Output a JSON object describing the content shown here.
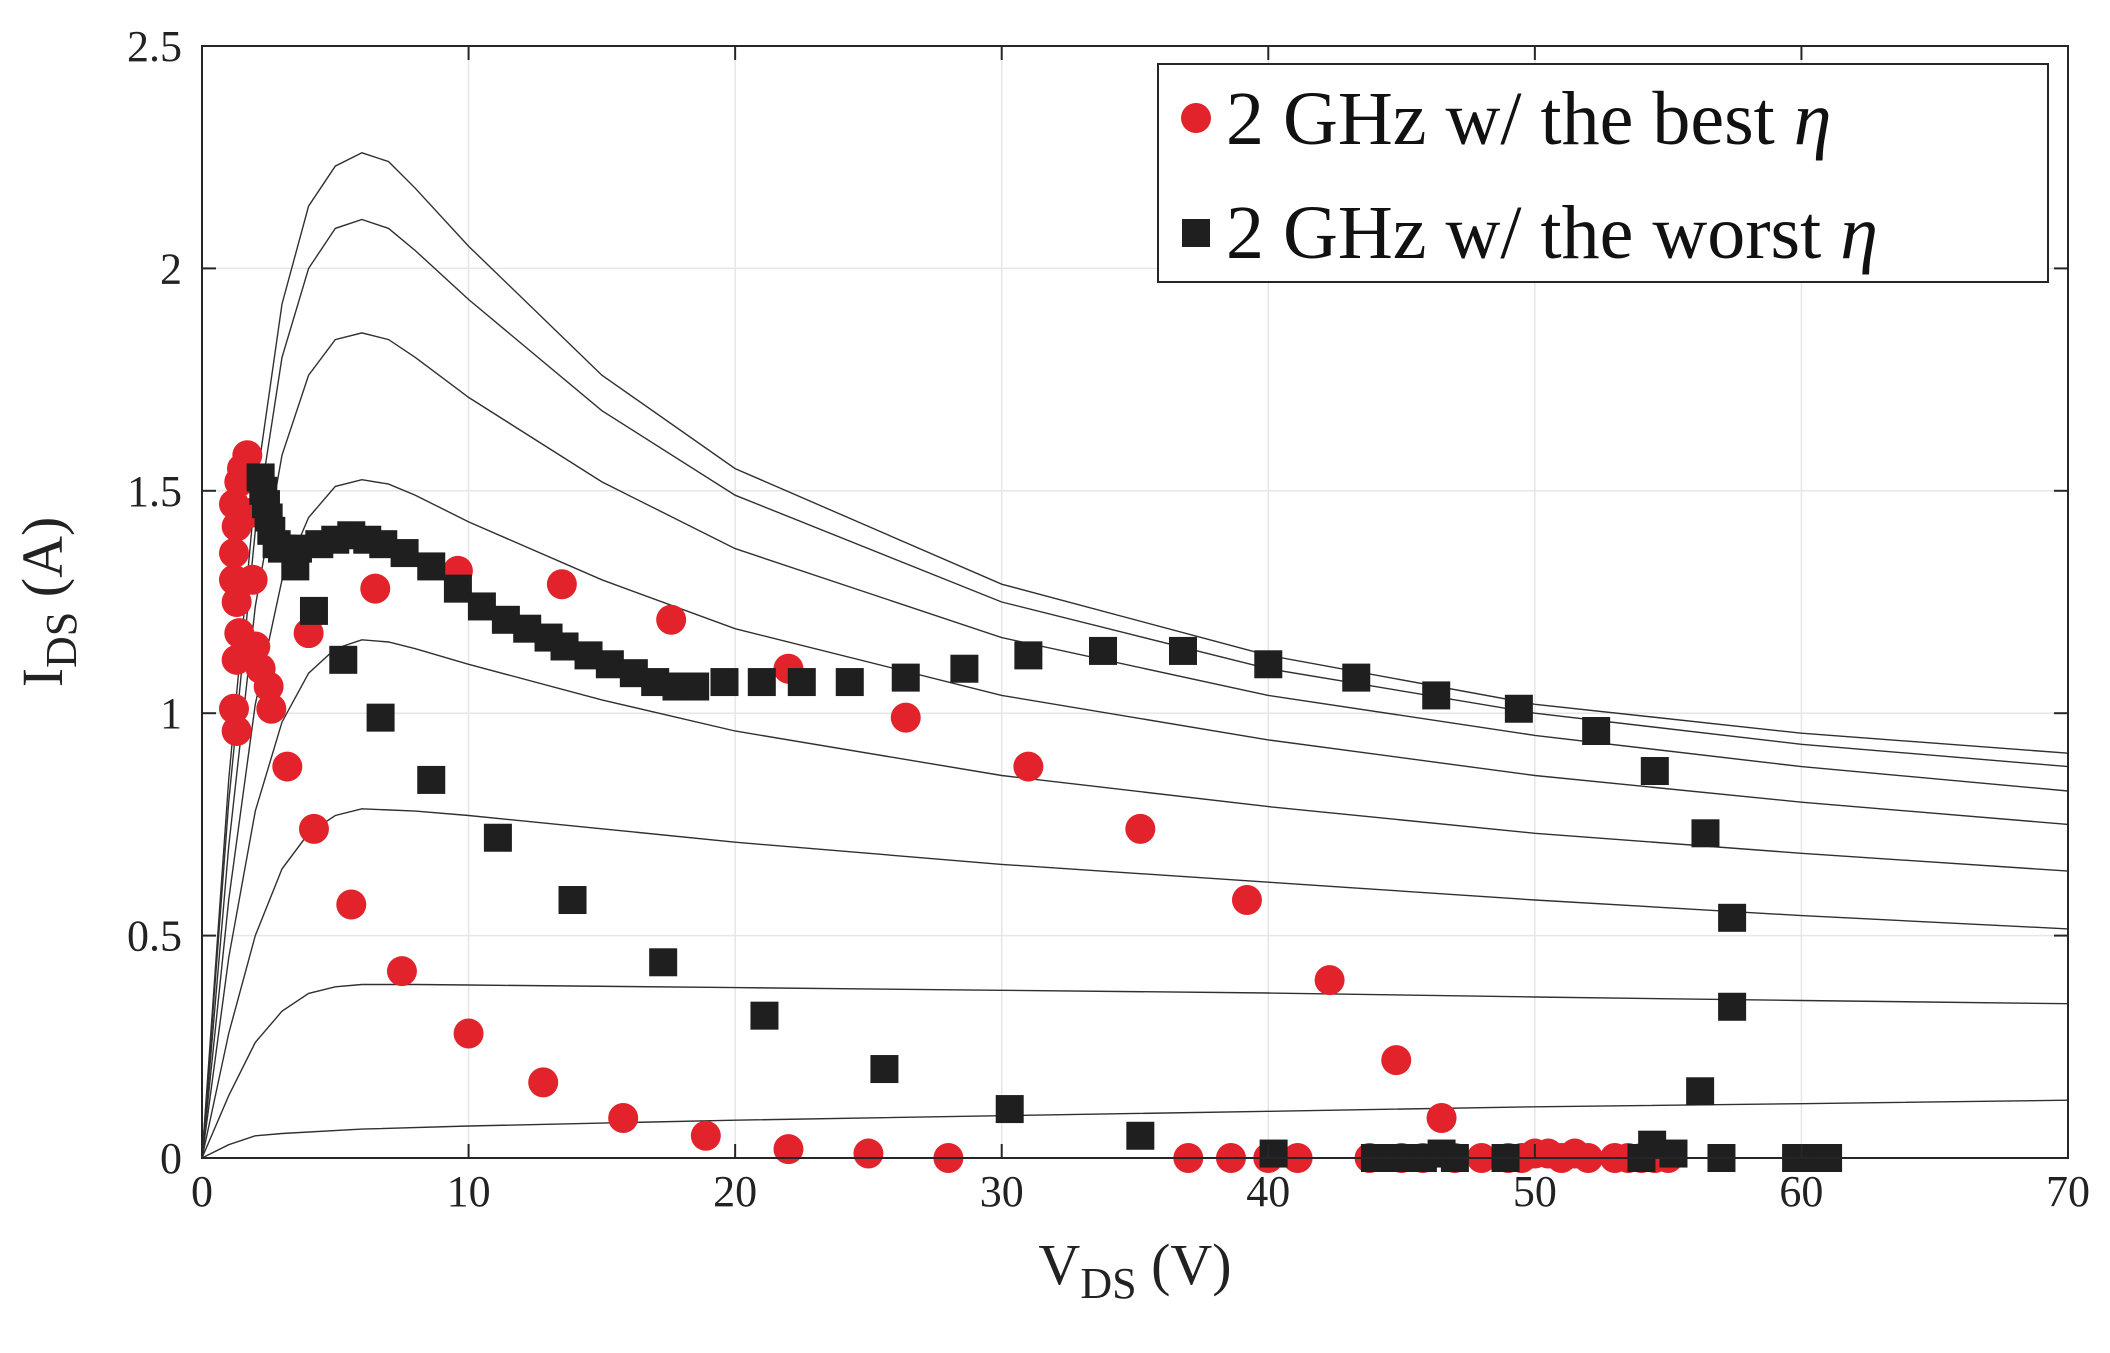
{
  "chart_data": {
    "type": "scatter",
    "title": "",
    "xlabel": {
      "main": "V",
      "sub": "DS",
      "unit": "(V)"
    },
    "ylabel": {
      "main": "I",
      "sub": "DS",
      "unit": "(A)"
    },
    "xlim": [
      0,
      70
    ],
    "ylim": [
      0,
      2.5
    ],
    "grid": true,
    "legend_position": "top-right",
    "x_ticks": [
      "0",
      "10",
      "20",
      "30",
      "40",
      "50",
      "60",
      "70"
    ],
    "y_ticks": [
      "0",
      "0.5",
      "1",
      "1.5",
      "2",
      "2.5"
    ],
    "series": [
      {
        "name": "2 GHz w/ the best η",
        "label_text": "2 GHz w/ the best ",
        "label_symbol": "η",
        "marker": "circle",
        "color": "#e3232c",
        "points": [
          [
            1.3,
            0.96
          ],
          [
            1.2,
            1.01
          ],
          [
            1.3,
            1.12
          ],
          [
            1.4,
            1.18
          ],
          [
            1.3,
            1.25
          ],
          [
            1.2,
            1.3
          ],
          [
            1.2,
            1.36
          ],
          [
            1.3,
            1.42
          ],
          [
            1.2,
            1.47
          ],
          [
            1.4,
            1.52
          ],
          [
            1.5,
            1.55
          ],
          [
            1.7,
            1.58
          ],
          [
            1.8,
            1.45
          ],
          [
            1.9,
            1.3
          ],
          [
            2.0,
            1.15
          ],
          [
            2.2,
            1.1
          ],
          [
            2.5,
            1.06
          ],
          [
            2.6,
            1.01
          ],
          [
            3.2,
            0.88
          ],
          [
            4.0,
            1.18
          ],
          [
            4.2,
            0.74
          ],
          [
            5.6,
            0.57
          ],
          [
            6.5,
            1.28
          ],
          [
            7.5,
            0.42
          ],
          [
            9.6,
            1.32
          ],
          [
            10.0,
            0.28
          ],
          [
            12.8,
            0.17
          ],
          [
            13.5,
            1.29
          ],
          [
            15.8,
            0.09
          ],
          [
            17.6,
            1.21
          ],
          [
            18.9,
            0.05
          ],
          [
            22.0,
            1.1
          ],
          [
            22.0,
            0.02
          ],
          [
            25.0,
            0.01
          ],
          [
            26.4,
            0.99
          ],
          [
            28.0,
            0.0
          ],
          [
            31.0,
            0.88
          ],
          [
            35.2,
            0.74
          ],
          [
            37.0,
            0.0
          ],
          [
            38.6,
            0.0
          ],
          [
            39.2,
            0.58
          ],
          [
            40.0,
            0.0
          ],
          [
            41.1,
            0.0
          ],
          [
            42.3,
            0.4
          ],
          [
            43.8,
            0.0
          ],
          [
            44.8,
            0.22
          ],
          [
            45.0,
            0.0
          ],
          [
            45.8,
            0.0
          ],
          [
            46.5,
            0.09
          ],
          [
            47.0,
            0.0
          ],
          [
            48.0,
            0.0
          ],
          [
            49.0,
            0.0
          ],
          [
            49.5,
            0.0
          ],
          [
            50.0,
            0.01
          ],
          [
            50.5,
            0.01
          ],
          [
            51.0,
            0.0
          ],
          [
            51.5,
            0.01
          ],
          [
            52.0,
            0.0
          ],
          [
            53.0,
            0.0
          ],
          [
            53.5,
            0.0
          ],
          [
            54.0,
            0.0
          ],
          [
            54.5,
            0.0
          ],
          [
            55.0,
            0.0
          ]
        ]
      },
      {
        "name": "2 GHz w/ the worst η",
        "label_text": "2 GHz w/ the worst ",
        "label_symbol": "η",
        "marker": "square",
        "color": "#1f1f1f",
        "points": [
          [
            2.2,
            1.53
          ],
          [
            2.3,
            1.5
          ],
          [
            2.4,
            1.47
          ],
          [
            2.5,
            1.44
          ],
          [
            2.6,
            1.41
          ],
          [
            2.8,
            1.38
          ],
          [
            3.0,
            1.37
          ],
          [
            3.5,
            1.33
          ],
          [
            3.6,
            1.37
          ],
          [
            4.2,
            1.23
          ],
          [
            4.4,
            1.38
          ],
          [
            5.0,
            1.39
          ],
          [
            5.3,
            1.12
          ],
          [
            5.6,
            1.4
          ],
          [
            6.2,
            1.39
          ],
          [
            6.8,
            1.38
          ],
          [
            6.7,
            0.99
          ],
          [
            7.6,
            1.36
          ],
          [
            8.6,
            1.33
          ],
          [
            8.6,
            0.85
          ],
          [
            9.6,
            1.28
          ],
          [
            10.5,
            1.24
          ],
          [
            11.1,
            0.72
          ],
          [
            11.4,
            1.21
          ],
          [
            12.2,
            1.19
          ],
          [
            13.0,
            1.17
          ],
          [
            13.6,
            1.15
          ],
          [
            13.9,
            0.58
          ],
          [
            14.5,
            1.13
          ],
          [
            15.3,
            1.11
          ],
          [
            16.2,
            1.09
          ],
          [
            17.0,
            1.07
          ],
          [
            17.3,
            0.44
          ],
          [
            17.8,
            1.06
          ],
          [
            18.5,
            1.06
          ],
          [
            19.6,
            1.07
          ],
          [
            21.0,
            1.07
          ],
          [
            21.1,
            0.32
          ],
          [
            22.5,
            1.07
          ],
          [
            24.3,
            1.07
          ],
          [
            25.6,
            0.2
          ],
          [
            26.4,
            1.08
          ],
          [
            28.6,
            1.1
          ],
          [
            30.3,
            0.11
          ],
          [
            31.0,
            1.13
          ],
          [
            33.8,
            1.14
          ],
          [
            35.2,
            0.05
          ],
          [
            36.8,
            1.14
          ],
          [
            40.0,
            1.11
          ],
          [
            40.2,
            0.01
          ],
          [
            43.3,
            1.08
          ],
          [
            44.0,
            0.0
          ],
          [
            44.6,
            0.0
          ],
          [
            45.2,
            0.0
          ],
          [
            45.8,
            0.0
          ],
          [
            46.3,
            1.04
          ],
          [
            46.5,
            0.01
          ],
          [
            47.0,
            0.0
          ],
          [
            48.9,
            0.0
          ],
          [
            49.4,
            1.01
          ],
          [
            52.3,
            0.96
          ],
          [
            54.0,
            0.0
          ],
          [
            54.4,
            0.03
          ],
          [
            54.5,
            0.87
          ],
          [
            55.2,
            0.01
          ],
          [
            56.2,
            0.15
          ],
          [
            56.4,
            0.73
          ],
          [
            57.0,
            0.0
          ],
          [
            57.4,
            0.34
          ],
          [
            57.4,
            0.54
          ],
          [
            59.8,
            0.0
          ],
          [
            60.4,
            0.0
          ],
          [
            61.0,
            0.0
          ]
        ]
      }
    ],
    "model_curves": [
      {
        "name": "Vgs step 1",
        "points": [
          [
            0,
            0
          ],
          [
            1,
            0.03
          ],
          [
            2,
            0.05
          ],
          [
            3,
            0.055
          ],
          [
            6,
            0.065
          ],
          [
            10,
            0.072
          ],
          [
            20,
            0.085
          ],
          [
            30,
            0.095
          ],
          [
            40,
            0.105
          ],
          [
            50,
            0.115
          ],
          [
            60,
            0.122
          ],
          [
            70,
            0.13
          ]
        ]
      },
      {
        "name": "Vgs step 2",
        "points": [
          [
            0,
            0
          ],
          [
            1,
            0.14
          ],
          [
            2,
            0.26
          ],
          [
            3,
            0.33
          ],
          [
            4,
            0.37
          ],
          [
            5,
            0.385
          ],
          [
            6,
            0.39
          ],
          [
            8,
            0.39
          ],
          [
            10,
            0.389
          ],
          [
            20,
            0.383
          ],
          [
            30,
            0.377
          ],
          [
            40,
            0.371
          ],
          [
            50,
            0.362
          ],
          [
            60,
            0.354
          ],
          [
            70,
            0.347
          ]
        ]
      },
      {
        "name": "Vgs step 3",
        "points": [
          [
            0,
            0
          ],
          [
            1,
            0.28
          ],
          [
            2,
            0.5
          ],
          [
            3,
            0.65
          ],
          [
            4,
            0.73
          ],
          [
            5,
            0.77
          ],
          [
            6,
            0.785
          ],
          [
            8,
            0.78
          ],
          [
            10,
            0.77
          ],
          [
            15,
            0.74
          ],
          [
            20,
            0.71
          ],
          [
            30,
            0.66
          ],
          [
            40,
            0.62
          ],
          [
            50,
            0.58
          ],
          [
            60,
            0.545
          ],
          [
            70,
            0.515
          ]
        ]
      },
      {
        "name": "Vgs step 4",
        "points": [
          [
            0,
            0
          ],
          [
            1,
            0.45
          ],
          [
            2,
            0.78
          ],
          [
            3,
            0.98
          ],
          [
            4,
            1.09
          ],
          [
            5,
            1.145
          ],
          [
            6,
            1.165
          ],
          [
            7,
            1.16
          ],
          [
            8,
            1.145
          ],
          [
            10,
            1.11
          ],
          [
            15,
            1.03
          ],
          [
            20,
            0.96
          ],
          [
            30,
            0.86
          ],
          [
            40,
            0.79
          ],
          [
            50,
            0.73
          ],
          [
            60,
            0.685
          ],
          [
            70,
            0.645
          ]
        ]
      },
      {
        "name": "Vgs step 5",
        "points": [
          [
            0,
            0
          ],
          [
            1,
            0.58
          ],
          [
            2,
            1.02
          ],
          [
            3,
            1.3
          ],
          [
            4,
            1.44
          ],
          [
            5,
            1.51
          ],
          [
            6,
            1.525
          ],
          [
            7,
            1.515
          ],
          [
            8,
            1.49
          ],
          [
            10,
            1.43
          ],
          [
            15,
            1.3
          ],
          [
            20,
            1.19
          ],
          [
            30,
            1.04
          ],
          [
            40,
            0.94
          ],
          [
            50,
            0.86
          ],
          [
            60,
            0.8
          ],
          [
            70,
            0.75
          ]
        ]
      },
      {
        "name": "Vgs step 6",
        "points": [
          [
            0,
            0
          ],
          [
            1,
            0.7
          ],
          [
            2,
            1.24
          ],
          [
            3,
            1.58
          ],
          [
            4,
            1.76
          ],
          [
            5,
            1.84
          ],
          [
            6,
            1.855
          ],
          [
            7,
            1.84
          ],
          [
            8,
            1.8
          ],
          [
            10,
            1.71
          ],
          [
            15,
            1.52
          ],
          [
            20,
            1.37
          ],
          [
            30,
            1.17
          ],
          [
            40,
            1.04
          ],
          [
            50,
            0.95
          ],
          [
            60,
            0.88
          ],
          [
            70,
            0.825
          ]
        ]
      },
      {
        "name": "Vgs step 7",
        "points": [
          [
            0,
            0
          ],
          [
            1,
            0.8
          ],
          [
            2,
            1.41
          ],
          [
            3,
            1.8
          ],
          [
            4,
            2.0
          ],
          [
            5,
            2.09
          ],
          [
            6,
            2.11
          ],
          [
            7,
            2.09
          ],
          [
            8,
            2.04
          ],
          [
            10,
            1.93
          ],
          [
            15,
            1.68
          ],
          [
            20,
            1.49
          ],
          [
            30,
            1.25
          ],
          [
            40,
            1.1
          ],
          [
            50,
            1.0
          ],
          [
            60,
            0.93
          ],
          [
            70,
            0.88
          ]
        ]
      },
      {
        "name": "Vgs step 8",
        "points": [
          [
            0,
            0
          ],
          [
            1,
            0.85
          ],
          [
            2,
            1.5
          ],
          [
            3,
            1.92
          ],
          [
            4,
            2.14
          ],
          [
            5,
            2.23
          ],
          [
            6,
            2.26
          ],
          [
            7,
            2.24
          ],
          [
            8,
            2.18
          ],
          [
            10,
            2.05
          ],
          [
            15,
            1.76
          ],
          [
            20,
            1.55
          ],
          [
            30,
            1.29
          ],
          [
            40,
            1.13
          ],
          [
            50,
            1.02
          ],
          [
            60,
            0.955
          ],
          [
            70,
            0.91
          ]
        ]
      }
    ]
  }
}
